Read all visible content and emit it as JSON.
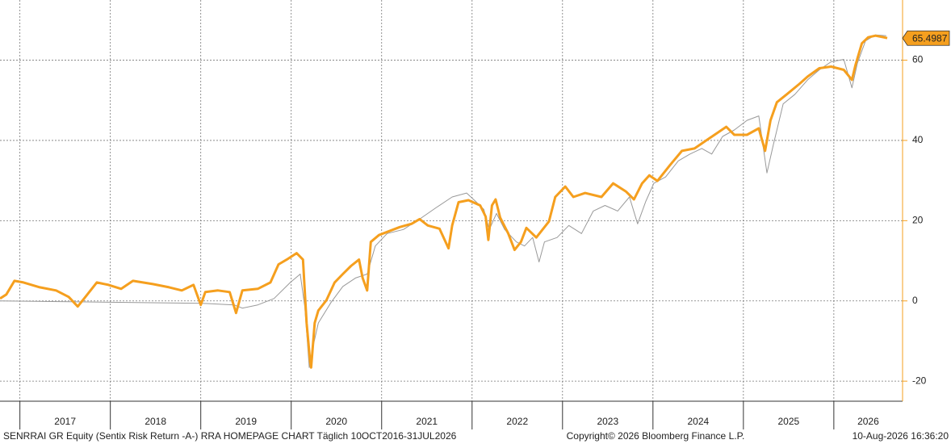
{
  "chart_data": {
    "type": "line",
    "xlim": [
      2016.78,
      2026.76
    ],
    "xticks": [
      2017,
      2018,
      2019,
      2020,
      2021,
      2022,
      2023,
      2024,
      2025,
      2026
    ],
    "ylim": [
      -25,
      75
    ],
    "yticks": [
      -20,
      0,
      20,
      40,
      60
    ],
    "grid": true,
    "axis_color": "#f59f1e",
    "series": [
      {
        "color": "#999999",
        "x": [
          2016.78,
          2019.01,
          2019.37,
          2019.46,
          2019.63,
          2019.81,
          2019.99,
          2020.1,
          2020.15,
          2020.2,
          2020.24,
          2020.3,
          2020.44,
          2020.57,
          2020.71,
          2020.84,
          2020.93,
          2021.06,
          2021.24,
          2021.42,
          2021.6,
          2021.78,
          2021.94,
          2022.04,
          2022.13,
          2022.19,
          2022.27,
          2022.36,
          2022.49,
          2022.58,
          2022.67,
          2022.74,
          2022.8,
          2022.94,
          2023.07,
          2023.21,
          2023.34,
          2023.47,
          2023.61,
          2023.74,
          2023.83,
          2023.92,
          2024.01,
          2024.14,
          2024.28,
          2024.41,
          2024.54,
          2024.65,
          2024.77,
          2024.9,
          2025.04,
          2025.17,
          2025.26,
          2025.33,
          2025.44,
          2025.57,
          2025.71,
          2025.84,
          2025.97,
          2026.11,
          2026.2,
          2026.26,
          2026.35,
          2026.46,
          2026.58
        ],
        "values": [
          0,
          -0.6,
          -1.0,
          -1.8,
          -1.0,
          0.6,
          4.6,
          6.7,
          -1.4,
          -16.6,
          -11.5,
          -5.5,
          -0.4,
          3.6,
          5.7,
          6.7,
          13.7,
          16.8,
          17.8,
          20.4,
          23.2,
          25.9,
          26.9,
          24.8,
          22.8,
          17.8,
          21.8,
          17.8,
          14.7,
          13.7,
          15.8,
          9.7,
          14.7,
          15.8,
          18.8,
          16.8,
          22.4,
          23.8,
          22.4,
          25.9,
          19.2,
          24.8,
          29.3,
          30.9,
          34.9,
          36.6,
          38.0,
          36.6,
          41.0,
          42.6,
          45.0,
          46.1,
          31.9,
          38.8,
          49.1,
          51.5,
          55.1,
          57.6,
          59.6,
          60.2,
          53.1,
          59.2,
          64.8,
          66.3,
          66.1
        ]
      },
      {
        "color": "#f59f1e",
        "x": [
          2016.78,
          2016.85,
          2016.94,
          2017.04,
          2017.22,
          2017.4,
          2017.54,
          2017.64,
          2017.71,
          2017.85,
          2017.98,
          2018.12,
          2018.25,
          2018.47,
          2018.65,
          2018.79,
          2018.92,
          2019.0,
          2019.05,
          2019.19,
          2019.32,
          2019.39,
          2019.46,
          2019.63,
          2019.77,
          2019.86,
          2019.95,
          2020.06,
          2020.13,
          2020.17,
          2020.21,
          2020.22,
          2020.26,
          2020.3,
          2020.39,
          2020.48,
          2020.57,
          2020.66,
          2020.75,
          2020.79,
          2020.84,
          2020.88,
          2020.97,
          2021.06,
          2021.2,
          2021.33,
          2021.42,
          2021.51,
          2021.64,
          2021.74,
          2021.78,
          2021.85,
          2021.96,
          2022.09,
          2022.15,
          2022.18,
          2022.22,
          2022.26,
          2022.31,
          2022.4,
          2022.47,
          2022.54,
          2022.6,
          2022.71,
          2022.85,
          2022.92,
          2023.03,
          2023.12,
          2023.25,
          2023.43,
          2023.56,
          2023.7,
          2023.79,
          2023.88,
          2023.96,
          2024.05,
          2024.19,
          2024.32,
          2024.46,
          2024.59,
          2024.72,
          2024.81,
          2024.9,
          2025.04,
          2025.17,
          2025.24,
          2025.3,
          2025.37,
          2025.48,
          2025.62,
          2025.71,
          2025.84,
          2025.97,
          2026.11,
          2026.2,
          2026.24,
          2026.31,
          2026.38,
          2026.46,
          2026.55,
          2026.59
        ],
        "values": [
          0.6,
          1.6,
          5.0,
          4.6,
          3.4,
          2.6,
          1.0,
          -1.4,
          0.6,
          4.6,
          4.0,
          3.0,
          5.0,
          4.2,
          3.4,
          2.6,
          4.0,
          -1.0,
          2.2,
          2.6,
          2.2,
          -3.0,
          2.6,
          3.0,
          4.6,
          9.1,
          10.3,
          11.9,
          10.3,
          -5.5,
          -15.2,
          -16.6,
          -5.5,
          -2.4,
          0.2,
          4.6,
          6.7,
          8.7,
          10.3,
          5.7,
          2.6,
          14.7,
          16.4,
          17.2,
          18.4,
          19.2,
          20.4,
          18.8,
          18.0,
          13.1,
          18.8,
          24.6,
          25.1,
          23.8,
          21.0,
          15.2,
          23.8,
          25.3,
          20.8,
          16.8,
          12.7,
          14.7,
          18.2,
          15.8,
          19.8,
          25.9,
          28.5,
          25.9,
          26.9,
          25.9,
          29.3,
          27.3,
          25.3,
          29.3,
          31.3,
          29.9,
          33.9,
          37.4,
          38.0,
          40.0,
          42.0,
          43.4,
          41.4,
          41.4,
          43.0,
          37.4,
          45.0,
          49.5,
          51.5,
          54.1,
          55.9,
          58.0,
          58.4,
          57.6,
          55.1,
          58.8,
          64.2,
          65.7,
          66.1,
          65.7,
          65.4987
        ]
      }
    ],
    "footer_left": "SENRRAI GR Equity (Sentix Risk Return -A-) RRA HOMEPAGE CHART Täglich 10OCT2016-31JUL2026",
    "footer_center": "Copyright© 2026 Bloomberg Finance L.P.",
    "footer_right": "10-Aug-2026 16:36:20"
  }
}
